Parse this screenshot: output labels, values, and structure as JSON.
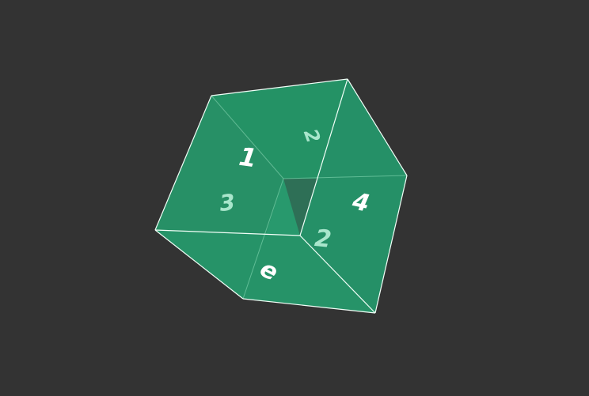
{
  "scene": {
    "background_color": "#333333",
    "cube_fill_color": "#26986A",
    "edge_color": "#F2FFF8",
    "labels": {
      "front_top_left": "1",
      "top_face": "2",
      "back_left": "3",
      "right_face": "4",
      "back_right": "2",
      "bottom_face": "e"
    }
  }
}
